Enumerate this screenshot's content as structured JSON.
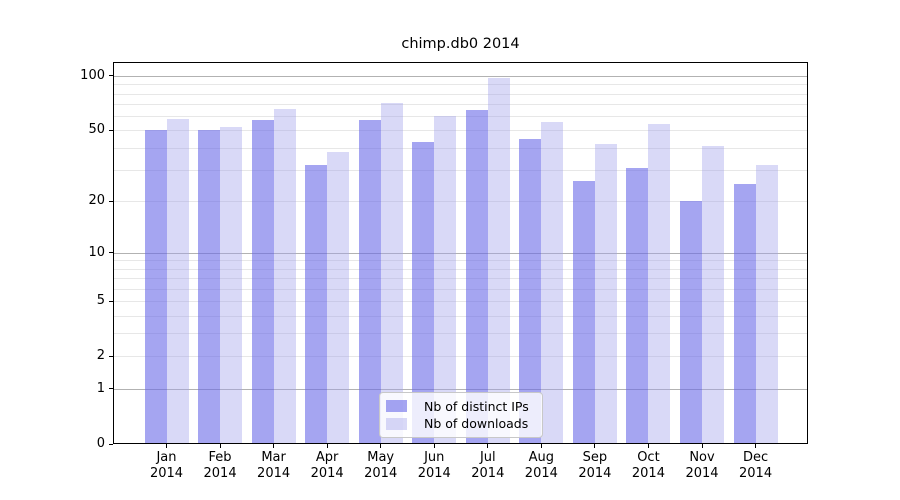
{
  "chart_data": {
    "type": "bar",
    "title": "chimp.db0 2014",
    "categories": [
      "Jan",
      "Feb",
      "Mar",
      "Apr",
      "May",
      "Jun",
      "Jul",
      "Aug",
      "Sep",
      "Oct",
      "Nov",
      "Dec"
    ],
    "year": "2014",
    "series": [
      {
        "name": "Nb of distinct IPs",
        "color": "rgba(105,105,232,0.6)",
        "values": [
          50,
          50,
          57,
          32,
          57,
          43,
          65,
          45,
          26,
          31,
          20,
          25
        ]
      },
      {
        "name": "Nb of downloads",
        "color": "rgba(160,160,235,0.4)",
        "values": [
          58,
          52,
          66,
          38,
          71,
          60,
          98,
          56,
          42,
          54,
          41,
          32
        ]
      }
    ],
    "xlabel": "",
    "ylabel": "",
    "yscale": "log1p",
    "ylim": [
      0,
      120
    ],
    "yticks": [
      100,
      50,
      20,
      10,
      5,
      2,
      1,
      0
    ],
    "minor_gridlines": [
      90,
      80,
      70,
      60,
      40,
      30,
      9,
      8,
      7,
      6,
      4,
      3
    ],
    "decade_gridlines": [
      1,
      10,
      100
    ],
    "grid": true,
    "legend": {
      "position": "lower-center",
      "labels": [
        "Nb of distinct IPs",
        "Nb of downloads"
      ]
    },
    "colors": {
      "grid_decade": "#b2b2b2",
      "grid_minor": "#e7e7e7",
      "frame": "#000000",
      "background": "#ffffff"
    }
  }
}
